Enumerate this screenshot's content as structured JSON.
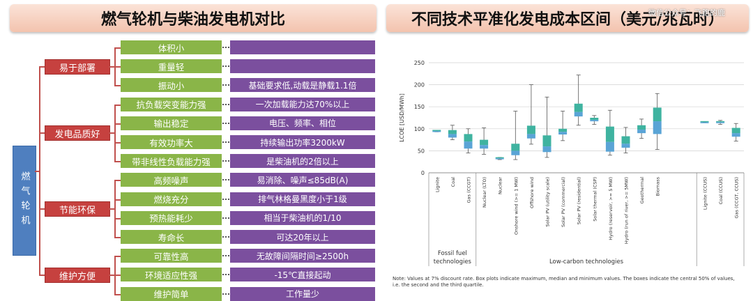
{
  "left": {
    "title": "燃气轮机与柴油发电机对比",
    "root": "燃气轮机",
    "categories": [
      {
        "label": "易于部署",
        "features": [
          {
            "name": "体积小",
            "desc": ""
          },
          {
            "name": "重量轻",
            "desc": ""
          },
          {
            "name": "振动小",
            "desc": "基础要求低,动载是静载1.1倍"
          }
        ]
      },
      {
        "label": "发电品质好",
        "features": [
          {
            "name": "抗负载突变能力强",
            "desc": "一次加载能力达70%以上"
          },
          {
            "name": "输出稳定",
            "desc": "电压、频率、相位"
          },
          {
            "name": "有效功率大",
            "desc": "持续输出功率3200kW"
          },
          {
            "name": "带非线性负载能力强",
            "desc": "是柴油机的2倍以上"
          }
        ]
      },
      {
        "label": "节能环保",
        "features": [
          {
            "name": "高频噪声",
            "desc": "易消除、噪声≤85dB(A)"
          },
          {
            "name": "燃烧充分",
            "desc": "排气林格曼黑度小于1级"
          },
          {
            "name": "预热能耗少",
            "desc": "相当于柴油机的1/10"
          },
          {
            "name": "寿命长",
            "desc": "可达20年以上"
          }
        ]
      },
      {
        "label": "维护方便",
        "features": [
          {
            "name": "可靠性高",
            "desc": "无故障间隔时间≥2500h"
          },
          {
            "name": "环境适应性强",
            "desc": "-15℃直接起动"
          },
          {
            "name": "维护简单",
            "desc": "工作量少"
          }
        ]
      }
    ]
  },
  "right": {
    "title": "不同技术平准化发电成本区间（美元/兆瓦时）",
    "watermark": "微信公众号：飞跑的鹿",
    "note_line1": "Note: Values at 7% discount rate. Box plots indicate maximum, median and minimum values. The boxes indicate the central 50% of values,",
    "note_line2": "i.e. the second and the third quartile."
  },
  "chart_data": {
    "type": "boxplot",
    "title": "不同技术平准化发电成本区间（美元/兆瓦时）",
    "ylabel": "LCOE [USD/MWh]",
    "ylim": [
      0,
      250
    ],
    "yticks": [
      0,
      50,
      100,
      150,
      200,
      250
    ],
    "grid": true,
    "groups": [
      {
        "label": "Fossil fuel technologies",
        "line1": "Fossil fuel",
        "line2": "technologies",
        "start": 0,
        "end": 2
      },
      {
        "label": "Low-carbon technologies",
        "start": 3,
        "end": 16
      },
      {
        "label": "",
        "start": 17,
        "end": 19
      }
    ],
    "categories": [
      "Lignite",
      "Coal",
      "Gas (CCGT)",
      "Nuclear (LTO)",
      "Nuclear",
      "Onshore wind (>= 1 MW)",
      "Offshore wind",
      "Solar PV (utility scale)",
      "Solar PV (commercial)",
      "Solar PV (residential)",
      "Solar thermal (CSP)",
      "Hydro (reservoir, >= 5 MW)",
      "Hydro (run of river, >= 5MW)",
      "Geothermal",
      "Biomass",
      "Lignite (CCUS)",
      "Coal (CCUS)",
      "Gas (CCGT, CCUS)"
    ],
    "positions": [
      0,
      1,
      2,
      3,
      4,
      5,
      6,
      7,
      8,
      9,
      10,
      11,
      12,
      13,
      14,
      17,
      18,
      19
    ],
    "series": [
      {
        "name": "Lignite",
        "min": 93,
        "q1": 93,
        "median": 95,
        "q3": 96,
        "max": 96
      },
      {
        "name": "Coal",
        "min": 75,
        "q1": 80,
        "median": 88,
        "q3": 97,
        "max": 108
      },
      {
        "name": "Gas (CCGT)",
        "min": 45,
        "q1": 55,
        "median": 71,
        "q3": 88,
        "max": 100
      },
      {
        "name": "Nuclear (LTO)",
        "min": 42,
        "q1": 55,
        "median": 63,
        "q3": 75,
        "max": 102
      },
      {
        "name": "Nuclear",
        "min": 30,
        "q1": 32,
        "median": 33,
        "q3": 35,
        "max": 35
      },
      {
        "name": "Onshore wind (>= 1 MW)",
        "min": 30,
        "q1": 40,
        "median": 50,
        "q3": 66,
        "max": 140
      },
      {
        "name": "Offshore wind",
        "min": 65,
        "q1": 78,
        "median": 88,
        "q3": 107,
        "max": 200
      },
      {
        "name": "Solar PV (utility scale)",
        "min": 35,
        "q1": 47,
        "median": 60,
        "q3": 85,
        "max": 172
      },
      {
        "name": "Solar PV (commercial)",
        "min": 73,
        "q1": 87,
        "median": 93,
        "q3": 100,
        "max": 140
      },
      {
        "name": "Solar PV (residential)",
        "min": 108,
        "q1": 128,
        "median": 138,
        "q3": 157,
        "max": 222
      },
      {
        "name": "Solar thermal (CSP)",
        "min": 110,
        "q1": 117,
        "median": 120,
        "q3": 125,
        "max": 130
      },
      {
        "name": "Hydro (reservoir, >= 5 MW)",
        "min": 40,
        "q1": 48,
        "median": 70,
        "q3": 105,
        "max": 142
      },
      {
        "name": "Hydro (run of river, >= 5MW)",
        "min": 45,
        "q1": 57,
        "median": 66,
        "q3": 83,
        "max": 103
      },
      {
        "name": "Geothermal",
        "min": 78,
        "q1": 90,
        "median": 98,
        "q3": 108,
        "max": 122
      },
      {
        "name": "Biomass",
        "min": 53,
        "q1": 88,
        "median": 117,
        "q3": 148,
        "max": 180
      },
      {
        "name": "Lignite (CCUS)",
        "min": 115,
        "q1": 115,
        "median": 115,
        "q3": 115,
        "max": 115
      },
      {
        "name": "Coal (CCUS)",
        "min": 110,
        "q1": 113,
        "median": 115,
        "q3": 117,
        "max": 119
      },
      {
        "name": "Gas (CCGT, CCUS)",
        "min": 72,
        "q1": 82,
        "median": 90,
        "q3": 102,
        "max": 112
      }
    ],
    "colors": {
      "lower": "#5aa4d6",
      "upper": "#3fb3a0",
      "whisker": "#555555",
      "grid": "#d0d0d0"
    }
  }
}
